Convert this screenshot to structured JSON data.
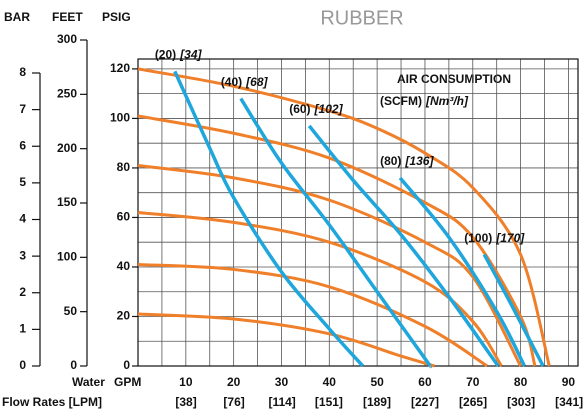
{
  "chart_data": {
    "type": "pump_curve",
    "title": "RUBBER",
    "bar_label": "BAR",
    "feet_label": "FEET",
    "psig_label": "PSIG",
    "x_label_top": "Water",
    "x_label_unit": "GPM",
    "x_label_bottom": "Flow Rates [LPM]",
    "air_title": "AIR CONSUMPTION",
    "air_unit": "(SCFM)",
    "air_unit_metric": "[Nm³/h]",
    "xlim": [
      0,
      92
    ],
    "xticks": [
      10,
      20,
      30,
      40,
      50,
      60,
      70,
      80,
      90
    ],
    "x_minor_grid": [
      5,
      15,
      25,
      35,
      45,
      55,
      65,
      75,
      85
    ],
    "x2lim": [
      0,
      348
    ],
    "x2ticks": [
      {
        "value": 38,
        "label": "[38]"
      },
      {
        "value": 76,
        "label": "[76]"
      },
      {
        "value": 114,
        "label": "[114]"
      },
      {
        "value": 151,
        "label": "[151]"
      },
      {
        "value": 189,
        "label": "[189]"
      },
      {
        "value": 227,
        "label": "[227]"
      },
      {
        "value": 265,
        "label": "[265]"
      },
      {
        "value": 303,
        "label": "[303]"
      },
      {
        "value": 341,
        "label": "[341]"
      }
    ],
    "ylim": [
      0,
      124
    ],
    "yticks": [
      0,
      20,
      40,
      60,
      80,
      100,
      120
    ],
    "y_minor_grid": [
      10,
      30,
      50,
      70,
      90,
      110
    ],
    "feet_lim": [
      0,
      300
    ],
    "feet_ticks": [
      0,
      50,
      100,
      150,
      200,
      250,
      300
    ],
    "bar_lim": [
      0,
      8
    ],
    "bar_ticks": [
      0,
      1,
      2,
      3,
      4,
      5,
      6,
      7,
      8
    ],
    "grid": true,
    "pressure_color": "#f07f2a",
    "air_color": "#1fa6dc",
    "pressure_curves": [
      {
        "x": [
          0,
          20,
          40,
          50,
          60,
          70,
          80,
          86
        ],
        "values": [
          120,
          113,
          103,
          96,
          86,
          72,
          45,
          0
        ]
      },
      {
        "x": [
          0,
          20,
          40,
          60,
          70,
          80,
          83
        ],
        "values": [
          101,
          94,
          84,
          66,
          52,
          20,
          0
        ]
      },
      {
        "x": [
          0,
          20,
          40,
          60,
          70,
          80
        ],
        "values": [
          81,
          76,
          67,
          50,
          36,
          0
        ]
      },
      {
        "x": [
          0,
          20,
          40,
          60,
          70,
          76
        ],
        "values": [
          62,
          58,
          50,
          34,
          18,
          0
        ]
      },
      {
        "x": [
          0,
          20,
          40,
          60,
          73
        ],
        "values": [
          41,
          39,
          32,
          16,
          0
        ]
      },
      {
        "x": [
          0,
          20,
          40,
          55,
          62
        ],
        "values": [
          21,
          19,
          13,
          4,
          0
        ]
      }
    ],
    "air_curves": [
      {
        "label": "(20)",
        "metric_label": "[34]",
        "x": [
          7.7,
          15,
          20,
          30,
          40,
          47
        ],
        "values": [
          119,
          88,
          68,
          38,
          15,
          0
        ]
      },
      {
        "label": "(40)",
        "metric_label": "[68]",
        "x": [
          21.5,
          30,
          40,
          50,
          60,
          61
        ],
        "values": [
          108,
          82,
          57,
          30,
          3,
          0
        ]
      },
      {
        "label": "(60)",
        "metric_label": "[102]",
        "x": [
          35.8,
          45,
          55,
          65,
          75.3
        ],
        "values": [
          97,
          75,
          53,
          28,
          0
        ]
      },
      {
        "label": "(80)",
        "metric_label": "[136]",
        "x": [
          54.8,
          65,
          75,
          80.8
        ],
        "values": [
          76,
          52,
          22,
          0
        ]
      },
      {
        "label": "(100)",
        "metric_label": "[170]",
        "x": [
          72.4,
          78,
          84.7
        ],
        "values": [
          45,
          25,
          0
        ]
      }
    ]
  }
}
